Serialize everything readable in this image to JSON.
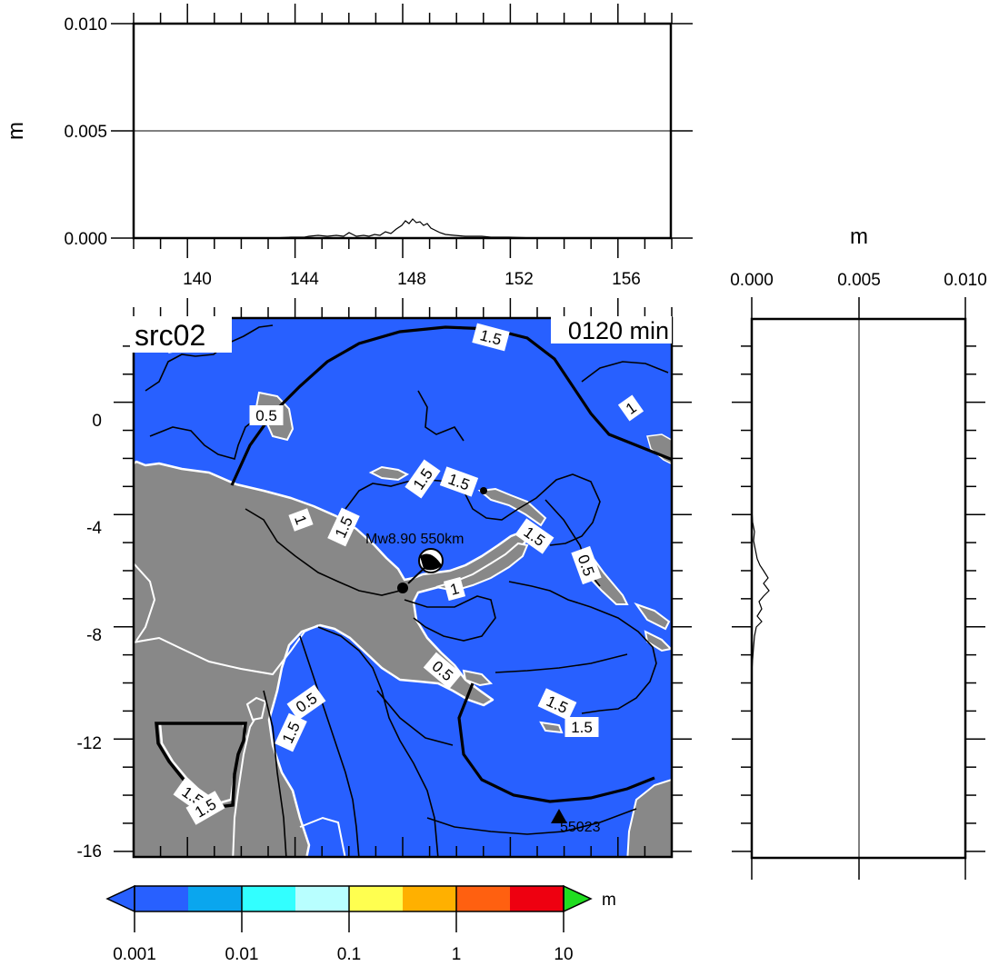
{
  "map": {
    "source_label": "src02",
    "time_label": "0120 min",
    "epicenter_label": "Mw8.90  550km",
    "station_label": "55023",
    "ocean_color": "#2860ff",
    "land_color": "#888888",
    "lon_ticks": [
      "140",
      "144",
      "148",
      "152",
      "156"
    ],
    "lat_ticks": [
      "0",
      "-4",
      "-8",
      "-12",
      "-16"
    ],
    "contour_labels": [
      {
        "text": "1.5"
      },
      {
        "text": "0.5"
      },
      {
        "text": "1"
      },
      {
        "text": "1.5"
      },
      {
        "text": "1.5"
      },
      {
        "text": "1"
      },
      {
        "text": "1.5"
      },
      {
        "text": "1.5"
      },
      {
        "text": "0.5"
      },
      {
        "text": "1"
      },
      {
        "text": "0.5"
      },
      {
        "text": "0.5"
      },
      {
        "text": "1.5"
      },
      {
        "text": "1.5"
      },
      {
        "text": "1.5"
      },
      {
        "text": "1.5"
      },
      {
        "text": "1.5"
      }
    ]
  },
  "top_profile": {
    "ylabel": "m",
    "y_ticks": [
      "0.010",
      "0.005",
      "0.000"
    ]
  },
  "right_profile": {
    "xlabel": "m",
    "x_ticks": [
      "0.000",
      "0.005",
      "0.010"
    ]
  },
  "colorbar": {
    "unit": "m",
    "tick_labels": [
      "0.001",
      "0.01",
      "0.1",
      "1",
      "10"
    ],
    "colors": [
      "#2860ff",
      "#0aa6ee",
      "#32ffff",
      "#b8ffff",
      "#ffff50",
      "#ffb000",
      "#ff6010",
      "#ee0010"
    ],
    "low_color": "#2860ff",
    "high_color": "#20dd20"
  },
  "chart_data": {
    "type": "map",
    "x_range": [
      138,
      158
    ],
    "y_range": [
      -16.2,
      3.0
    ],
    "top_panel_ylim": [
      0,
      0.01
    ],
    "right_panel_xlim": [
      0,
      0.01
    ]
  }
}
